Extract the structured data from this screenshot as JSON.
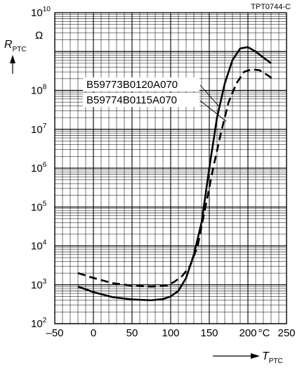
{
  "chart_data": {
    "type": "line",
    "figure_code": "TPT0744-C",
    "ylabel": {
      "symbol": "R",
      "subscript": "PTC"
    },
    "y_unit": "Ω",
    "xlabel": {
      "symbol": "T",
      "subscript": "PTC"
    },
    "x_unit": "°C",
    "yscale": "log",
    "xlim": [
      -50,
      250
    ],
    "ylim": [
      100,
      10000000000
    ],
    "x_ticks": [
      -50,
      0,
      50,
      100,
      150,
      200,
      250
    ],
    "x_tick_labels": [
      "–50",
      "0",
      "50",
      "100",
      "150",
      "200",
      "250"
    ],
    "y_tick_exponents": [
      2,
      3,
      4,
      5,
      6,
      7,
      8,
      10
    ],
    "y_tick_base": "10",
    "grid": true,
    "series": [
      {
        "name": "B59773B0120A070",
        "style": "solid",
        "points": [
          [
            -20,
            900
          ],
          [
            0,
            650
          ],
          [
            25,
            480
          ],
          [
            50,
            420
          ],
          [
            75,
            400
          ],
          [
            90,
            430
          ],
          [
            100,
            500
          ],
          [
            110,
            700
          ],
          [
            120,
            1500
          ],
          [
            130,
            6000
          ],
          [
            140,
            40000
          ],
          [
            150,
            1000000
          ],
          [
            160,
            20000000
          ],
          [
            170,
            150000000
          ],
          [
            180,
            600000000
          ],
          [
            190,
            1200000000
          ],
          [
            200,
            1300000000
          ],
          [
            210,
            1000000000
          ],
          [
            220,
            700000000
          ],
          [
            230,
            500000000
          ]
        ]
      },
      {
        "name": "B59774B0115A070",
        "style": "dashed",
        "points": [
          [
            -20,
            2000
          ],
          [
            0,
            1500
          ],
          [
            25,
            1100
          ],
          [
            50,
            950
          ],
          [
            75,
            900
          ],
          [
            95,
            950
          ],
          [
            105,
            1200
          ],
          [
            115,
            1700
          ],
          [
            125,
            3000
          ],
          [
            135,
            10000
          ],
          [
            145,
            100000
          ],
          [
            155,
            1000000
          ],
          [
            165,
            8000000
          ],
          [
            175,
            50000000
          ],
          [
            185,
            150000000
          ],
          [
            195,
            300000000
          ],
          [
            205,
            350000000
          ],
          [
            215,
            330000000
          ],
          [
            225,
            250000000
          ],
          [
            232,
            200000000
          ]
        ]
      }
    ]
  }
}
